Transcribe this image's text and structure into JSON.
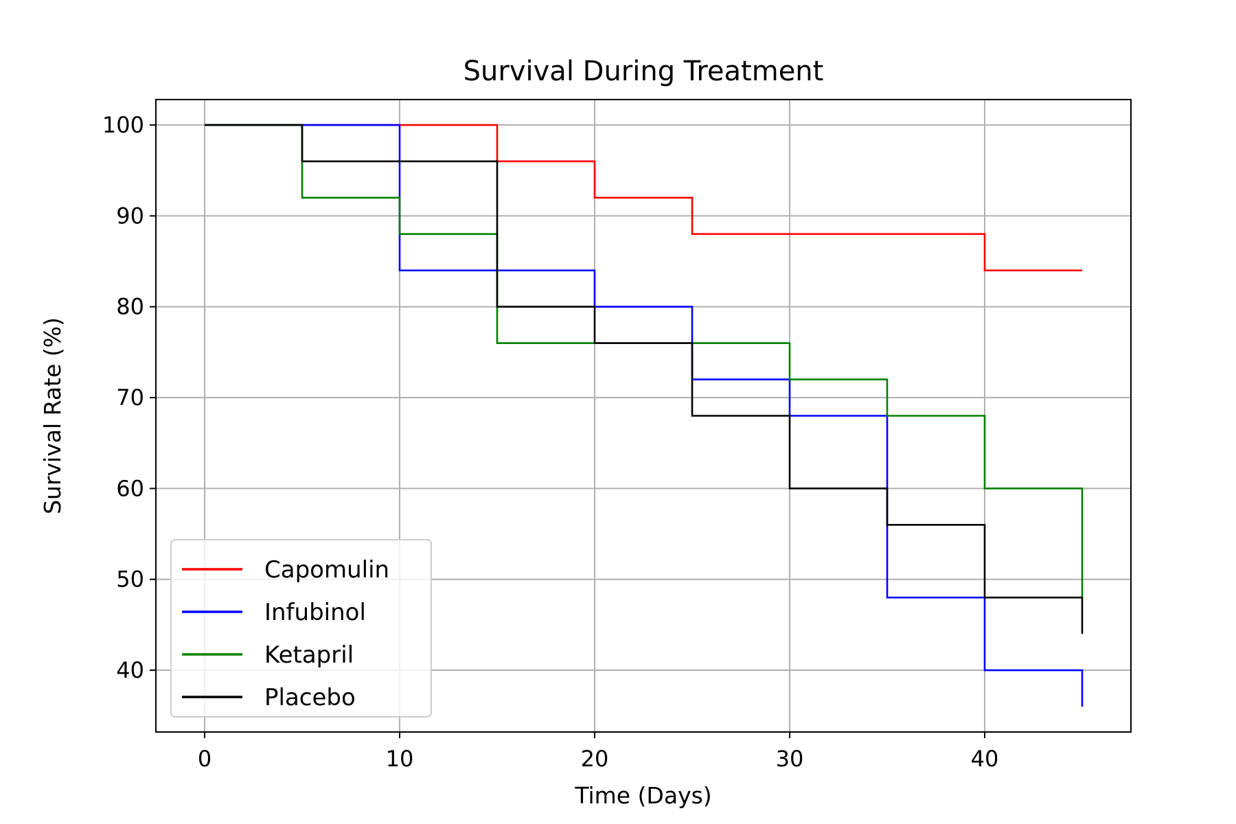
{
  "chart_data": {
    "type": "line",
    "step": "post",
    "title": "Survival During Treatment",
    "xlabel": "Time (Days)",
    "ylabel": "Survival Rate (%)",
    "xlim": [
      -2.5,
      47.5
    ],
    "ylim": [
      33.2,
      102.8
    ],
    "xticks": [
      0,
      10,
      20,
      30,
      40
    ],
    "yticks": [
      40,
      50,
      60,
      70,
      80,
      90,
      100
    ],
    "grid": true,
    "legend_position": "lower-left",
    "x": [
      0,
      5,
      10,
      15,
      20,
      25,
      30,
      35,
      40,
      45
    ],
    "series": [
      {
        "name": "Capomulin",
        "color": "#ff0000",
        "values": [
          100,
          100,
          100,
          96,
          92,
          88,
          88,
          88,
          84,
          84
        ]
      },
      {
        "name": "Infubinol",
        "color": "#0000ff",
        "values": [
          100,
          100,
          84,
          84,
          80,
          72,
          68,
          48,
          40,
          36
        ]
      },
      {
        "name": "Ketapril",
        "color": "#008000",
        "values": [
          100,
          92,
          88,
          76,
          76,
          76,
          72,
          68,
          60,
          48
        ]
      },
      {
        "name": "Placebo",
        "color": "#000000",
        "values": [
          100,
          96,
          96,
          80,
          76,
          68,
          60,
          56,
          48,
          44
        ]
      }
    ]
  }
}
